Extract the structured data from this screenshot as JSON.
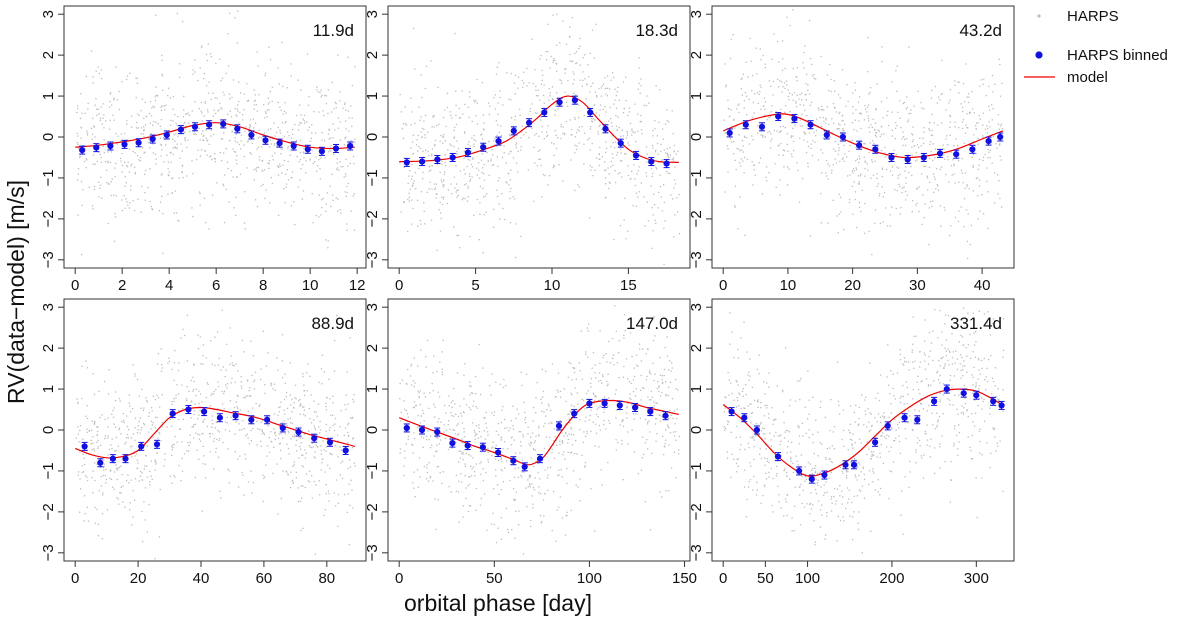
{
  "figure": {
    "ylabel": "RV(data−model) [m/s]",
    "xlabel": "orbital phase [day]"
  },
  "legend": {
    "entries": [
      {
        "label": "HARPS",
        "marker": "dot",
        "color": "#bdbdbd"
      },
      {
        "label": "HARPS binned",
        "marker": "point",
        "color": "#0000ee"
      },
      {
        "label": "model",
        "marker": "line",
        "color": "#ee0000"
      }
    ]
  },
  "colors": {
    "raw": "#bdbdbd",
    "binned": "#1010e0",
    "model": "#ee0000",
    "frame": "#333333"
  },
  "chart_data": [
    {
      "type": "scatter",
      "title": "11.9d",
      "period": 11.9,
      "xlim": [
        0,
        11.9
      ],
      "ylim": [
        -3.2,
        3.2
      ],
      "xticks": [
        0,
        2,
        4,
        6,
        8,
        10,
        12
      ],
      "yticks": [
        -3,
        -2,
        -1,
        0,
        1,
        2,
        3
      ],
      "binned": {
        "x": [
          0.3,
          0.9,
          1.5,
          2.1,
          2.7,
          3.3,
          3.9,
          4.5,
          5.1,
          5.7,
          6.3,
          6.9,
          7.5,
          8.1,
          8.7,
          9.3,
          9.9,
          10.5,
          11.1,
          11.7
        ],
        "y": [
          -0.32,
          -0.26,
          -0.22,
          -0.18,
          -0.14,
          -0.05,
          0.05,
          0.18,
          0.25,
          0.3,
          0.32,
          0.2,
          0.05,
          -0.08,
          -0.15,
          -0.22,
          -0.3,
          -0.35,
          -0.28,
          -0.22
        ]
      },
      "model": {
        "x": [
          0,
          1,
          2,
          3,
          4,
          5,
          6,
          7,
          8,
          9,
          10,
          11,
          11.9
        ],
        "y": [
          -0.25,
          -0.2,
          -0.12,
          -0.02,
          0.12,
          0.28,
          0.35,
          0.25,
          0.05,
          -0.12,
          -0.25,
          -0.28,
          -0.25
        ]
      }
    },
    {
      "type": "scatter",
      "title": "18.3d",
      "period": 18.3,
      "xlim": [
        0,
        18.3
      ],
      "ylim": [
        -3.2,
        3.2
      ],
      "xticks": [
        0,
        5,
        10,
        15
      ],
      "yticks": [
        -3,
        -2,
        -1,
        0,
        1,
        2,
        3
      ],
      "binned": {
        "x": [
          0.5,
          1.5,
          2.5,
          3.5,
          4.5,
          5.5,
          6.5,
          7.5,
          8.5,
          9.5,
          10.5,
          11.5,
          12.5,
          13.5,
          14.5,
          15.5,
          16.5,
          17.5
        ],
        "y": [
          -0.62,
          -0.6,
          -0.55,
          -0.5,
          -0.38,
          -0.25,
          -0.1,
          0.15,
          0.35,
          0.6,
          0.85,
          0.9,
          0.6,
          0.2,
          -0.15,
          -0.45,
          -0.6,
          -0.65
        ]
      },
      "model": {
        "x": [
          0,
          2,
          4,
          6,
          7,
          8,
          9,
          10,
          11,
          12,
          13,
          14,
          15,
          16,
          17,
          18.3
        ],
        "y": [
          -0.6,
          -0.58,
          -0.48,
          -0.25,
          -0.1,
          0.15,
          0.45,
          0.8,
          1.0,
          0.85,
          0.45,
          0.05,
          -0.3,
          -0.5,
          -0.6,
          -0.62
        ]
      }
    },
    {
      "type": "scatter",
      "title": "43.2d",
      "period": 43.2,
      "xlim": [
        0,
        43.2
      ],
      "ylim": [
        -3.2,
        3.2
      ],
      "xticks": [
        0,
        10,
        20,
        30,
        40
      ],
      "yticks": [
        -3,
        -2,
        -1,
        0,
        1,
        2,
        3
      ],
      "binned": {
        "x": [
          1,
          3.5,
          6,
          8.5,
          11,
          13.5,
          16,
          18.5,
          21,
          23.5,
          26,
          28.5,
          31,
          33.5,
          36,
          38.5,
          41,
          42.8
        ],
        "y": [
          0.1,
          0.3,
          0.25,
          0.5,
          0.45,
          0.3,
          0.05,
          0.0,
          -0.2,
          -0.3,
          -0.5,
          -0.55,
          -0.5,
          -0.4,
          -0.42,
          -0.3,
          -0.1,
          0.0
        ]
      },
      "model": {
        "x": [
          0,
          4,
          8,
          10,
          12,
          16,
          20,
          24,
          28,
          32,
          36,
          40,
          43.2
        ],
        "y": [
          0.15,
          0.4,
          0.55,
          0.55,
          0.45,
          0.15,
          -0.15,
          -0.38,
          -0.5,
          -0.45,
          -0.3,
          -0.05,
          0.15
        ]
      }
    },
    {
      "type": "scatter",
      "title": "88.9d",
      "period": 88.9,
      "xlim": [
        0,
        88.9
      ],
      "ylim": [
        -3.2,
        3.2
      ],
      "xticks": [
        0,
        20,
        40,
        60,
        80
      ],
      "yticks": [
        -3,
        -2,
        -1,
        0,
        1,
        2,
        3
      ],
      "binned": {
        "x": [
          3,
          8,
          12,
          16,
          21,
          26,
          31,
          36,
          41,
          46,
          51,
          56,
          61,
          66,
          71,
          76,
          81,
          86
        ],
        "y": [
          -0.4,
          -0.8,
          -0.7,
          -0.7,
          -0.4,
          -0.35,
          0.4,
          0.5,
          0.45,
          0.3,
          0.35,
          0.25,
          0.25,
          0.05,
          -0.05,
          -0.2,
          -0.3,
          -0.5
        ]
      },
      "model": {
        "x": [
          0,
          5,
          10,
          15,
          20,
          25,
          30,
          35,
          40,
          45,
          50,
          55,
          60,
          65,
          70,
          75,
          80,
          85,
          88.9
        ],
        "y": [
          -0.45,
          -0.6,
          -0.68,
          -0.65,
          -0.5,
          -0.1,
          0.3,
          0.5,
          0.55,
          0.5,
          0.42,
          0.35,
          0.25,
          0.12,
          0.0,
          -0.12,
          -0.22,
          -0.32,
          -0.4
        ]
      }
    },
    {
      "type": "scatter",
      "title": "147.0d",
      "period": 147.0,
      "xlim": [
        0,
        147
      ],
      "ylim": [
        -3.2,
        3.2
      ],
      "xticks": [
        0,
        50,
        100,
        150
      ],
      "yticks": [
        -3,
        -2,
        -1,
        0,
        1,
        2,
        3
      ],
      "binned": {
        "x": [
          4,
          12,
          20,
          28,
          36,
          44,
          52,
          60,
          66,
          74,
          84,
          92,
          100,
          108,
          116,
          124,
          132,
          140
        ],
        "y": [
          0.05,
          0.0,
          -0.05,
          -0.32,
          -0.38,
          -0.42,
          -0.55,
          -0.75,
          -0.9,
          -0.7,
          0.1,
          0.4,
          0.65,
          0.65,
          0.6,
          0.55,
          0.45,
          0.35
        ]
      },
      "model": {
        "x": [
          0,
          10,
          20,
          30,
          40,
          50,
          60,
          68,
          75,
          80,
          85,
          90,
          95,
          100,
          110,
          120,
          130,
          140,
          147
        ],
        "y": [
          0.3,
          0.12,
          -0.05,
          -0.22,
          -0.4,
          -0.55,
          -0.72,
          -0.85,
          -0.7,
          -0.4,
          -0.05,
          0.25,
          0.5,
          0.65,
          0.72,
          0.68,
          0.55,
          0.45,
          0.38
        ]
      }
    },
    {
      "type": "scatter",
      "title": "331.4d",
      "period": 331.4,
      "xlim": [
        0,
        331.4
      ],
      "ylim": [
        -3.2,
        3.2
      ],
      "xticks": [
        0,
        50,
        100,
        200,
        300
      ],
      "yticks": [
        -3,
        -2,
        -1,
        0,
        1,
        2,
        3
      ],
      "binned": {
        "x": [
          10,
          25,
          40,
          65,
          90,
          105,
          120,
          145,
          155,
          180,
          195,
          215,
          230,
          250,
          265,
          285,
          300,
          320,
          330
        ],
        "y": [
          0.45,
          0.3,
          0.0,
          -0.65,
          -1.0,
          -1.2,
          -1.1,
          -0.85,
          -0.85,
          -0.3,
          0.1,
          0.3,
          0.25,
          0.7,
          1.0,
          0.9,
          0.85,
          0.7,
          0.6
        ]
      },
      "model": {
        "x": [
          0,
          20,
          40,
          60,
          80,
          100,
          120,
          140,
          160,
          180,
          200,
          220,
          240,
          260,
          280,
          300,
          320,
          331.4
        ],
        "y": [
          0.62,
          0.3,
          -0.1,
          -0.55,
          -0.9,
          -1.12,
          -1.05,
          -0.85,
          -0.55,
          -0.15,
          0.25,
          0.55,
          0.8,
          0.95,
          1.0,
          0.95,
          0.75,
          0.6
        ]
      }
    }
  ]
}
